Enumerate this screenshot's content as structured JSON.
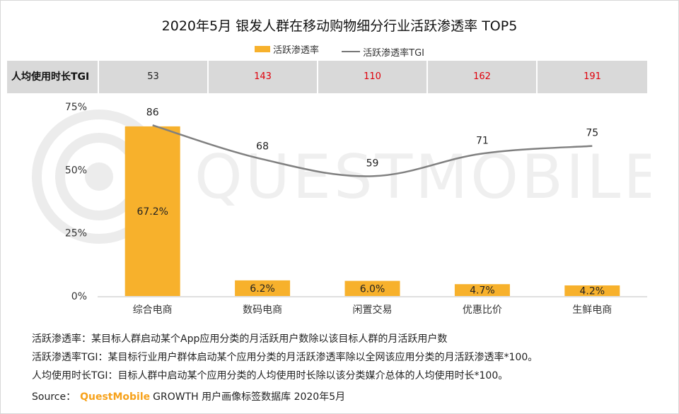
{
  "title": "2020年5月 银发人群在移动购物细分行业活跃渗透率 TOP5",
  "legend": {
    "bar": "活跃渗透率",
    "line": "活跃渗透率TGI"
  },
  "tgi_row": {
    "label": "人均使用时长TGI",
    "values": [
      "53",
      "143",
      "110",
      "162",
      "191"
    ],
    "colors": [
      "#222222",
      "#E0000B",
      "#E0000B",
      "#E0000B",
      "#E0000B"
    ]
  },
  "watermark": "QUESTMOBILE",
  "chart_data": {
    "type": "bar",
    "categories": [
      "综合电商",
      "数码电商",
      "闲置交易",
      "优惠比价",
      "生鲜电商"
    ],
    "series": [
      {
        "name": "活跃渗透率",
        "type": "bar",
        "values": [
          67.2,
          6.2,
          6.0,
          4.7,
          4.2
        ],
        "labels": [
          "67.2%",
          "6.2%",
          "6.0%",
          "4.7%",
          "4.2%"
        ],
        "color": "#F7B12C"
      },
      {
        "name": "活跃渗透率TGI",
        "type": "line",
        "values": [
          86,
          68,
          59,
          71,
          75
        ],
        "color": "#808080"
      }
    ],
    "y_ticks": [
      "0%",
      "25%",
      "50%",
      "75%"
    ],
    "ylim": [
      0,
      75
    ],
    "grid": false
  },
  "notes": [
    "活跃渗透率：某目标人群启动某个App应用分类的月活跃用户数除以该目标人群的月活跃用户数",
    "活跃渗透率TGI：某目标行业用户群体启动某个应用分类的月活跃渗透率除以全网该应用分类的月活跃渗透率*100。",
    "人均使用时长TGI：目标人群中启动某个应用分类的人均使用时长除以该分类媒介总体的人均使用时长*100。"
  ],
  "source": {
    "label": "Source：",
    "brand": "QuestMobile",
    "text": "GROWTH 用户画像标签数据库 2020年5月"
  }
}
